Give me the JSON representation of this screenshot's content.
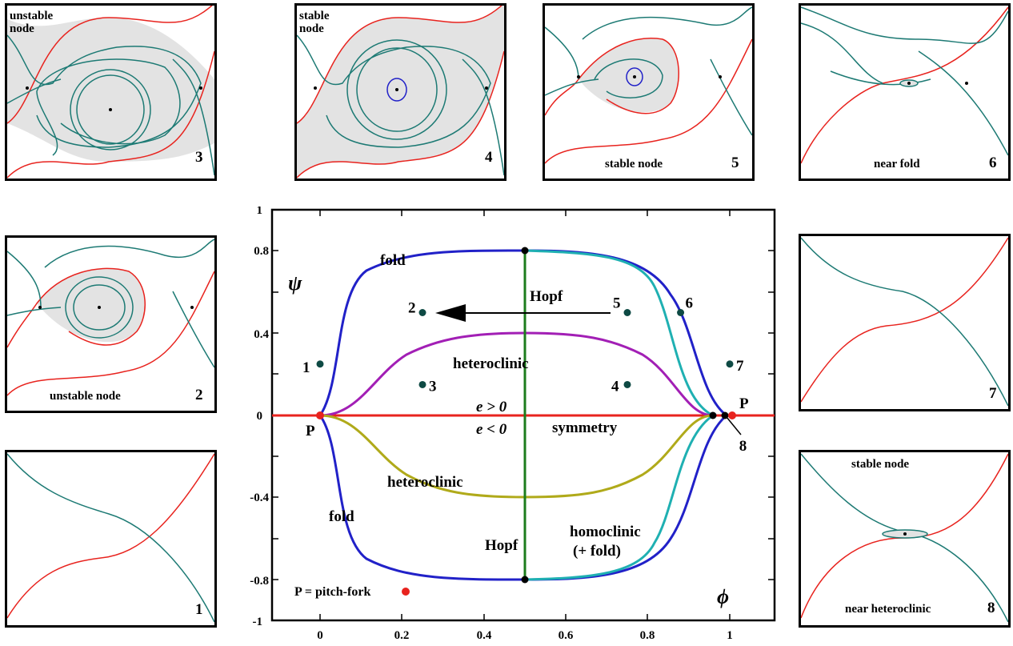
{
  "colors": {
    "red": "#e8231e",
    "teal": "#1d7a74",
    "blue": "#2121c8",
    "cyan": "#1fb0b2",
    "purple": "#a21fb5",
    "olive": "#b0aa1a",
    "green": "#1c7d1c",
    "shade": "#e3e3e3",
    "point": "#0e4a44"
  },
  "panels": {
    "p3": {
      "number": "3",
      "label_line1": "unstable",
      "label_line2": "node"
    },
    "p4": {
      "number": "4",
      "label_line1": "stable",
      "label_line2": "node"
    },
    "p5": {
      "number": "5",
      "label": "stable node"
    },
    "p6": {
      "number": "6",
      "label": "near fold"
    },
    "p2": {
      "number": "2",
      "label": "unstable node"
    },
    "p7": {
      "number": "7"
    },
    "p1": {
      "number": "1"
    },
    "p8": {
      "number": "8",
      "label_top": "stable node",
      "label_bottom": "near heteroclinic"
    }
  },
  "main": {
    "y_axis_symbol": "ψ",
    "x_axis_symbol": "ϕ",
    "x_ticks": [
      "0",
      "0.2",
      "0.4",
      "0.6",
      "0.8",
      "1"
    ],
    "y_ticks": [
      "1",
      "0.8",
      "0.4",
      "0",
      "-0.4",
      "-0.8",
      "-1"
    ],
    "labels": {
      "fold_top": "fold",
      "fold_bottom": "fold",
      "hopf_top": "Hopf",
      "hopf_bottom": "Hopf",
      "heteroclinic_top": "heteroclinic",
      "heteroclinic_bottom": "heteroclinic",
      "e_pos": "e > 0",
      "e_neg": "e < 0",
      "symmetry": "symmetry",
      "homoclinic": "homoclinic",
      "plus_fold": "(+ fold)",
      "p_left": "P",
      "p_right": "P",
      "legend": "P = pitch-fork"
    },
    "points": [
      {
        "label": "1",
        "phi": 0.0,
        "psi": 0.25
      },
      {
        "label": "2",
        "phi": 0.25,
        "psi": 0.5
      },
      {
        "label": "3",
        "phi": 0.25,
        "psi": 0.15
      },
      {
        "label": "4",
        "phi": 0.75,
        "psi": 0.15
      },
      {
        "label": "5",
        "phi": 0.75,
        "psi": 0.5
      },
      {
        "label": "6",
        "phi": 0.88,
        "psi": 0.5
      },
      {
        "label": "7",
        "phi": 1.0,
        "psi": 0.25
      },
      {
        "label": "8",
        "phi": 0.98,
        "psi": 0.0
      }
    ]
  }
}
